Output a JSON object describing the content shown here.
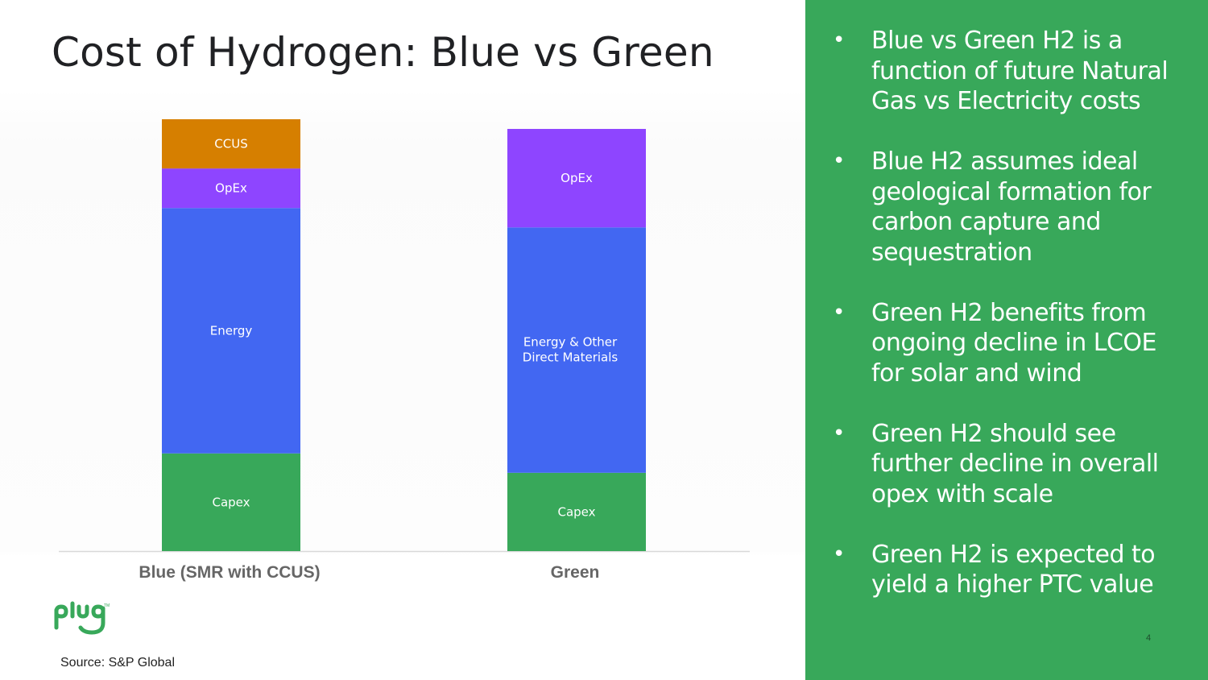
{
  "slide": {
    "title": "Cost of Hydrogen: Blue vs Green",
    "source": "Source: S&P Global",
    "page_number": "4",
    "logo_text": "plug"
  },
  "bullets": [
    "Blue vs Green H2 is a function of future Natural Gas vs Electricity costs",
    "Blue H2 assumes ideal geological formation for carbon capture and sequestration",
    "Green H2 benefits from ongoing decline in LCOE for solar and wind",
    "Green H2 should see further decline in overall opex with scale",
    "Green H2 is expected to yield a higher PTC value"
  ],
  "colors": {
    "capex": "#38a85a",
    "energy": "#4267f2",
    "opex": "#8e45ff",
    "ccus": "#d67f00",
    "panel": "#38a85a"
  },
  "chart_data": {
    "type": "bar",
    "stacked": true,
    "categories": [
      "Blue (SMR with CCUS)",
      "Green"
    ],
    "series": [
      {
        "name": "Capex",
        "values": [
          12.1,
          9.7
        ],
        "color": "#38a85a"
      },
      {
        "name": "Energy",
        "values": [
          30.4,
          0
        ],
        "color": "#4267f2"
      },
      {
        "name": "Energy & Other Direct Materials",
        "values": [
          0,
          30.4
        ],
        "color": "#4267f2"
      },
      {
        "name": "OpEx",
        "values": [
          4.9,
          12.2
        ],
        "color": "#8e45ff"
      },
      {
        "name": "CCUS",
        "values": [
          6.1,
          0
        ],
        "color": "#d67f00"
      }
    ],
    "ylim": [
      0,
      53.5
    ],
    "grid": false,
    "legend": "none",
    "xlabel": "",
    "ylabel": ""
  }
}
